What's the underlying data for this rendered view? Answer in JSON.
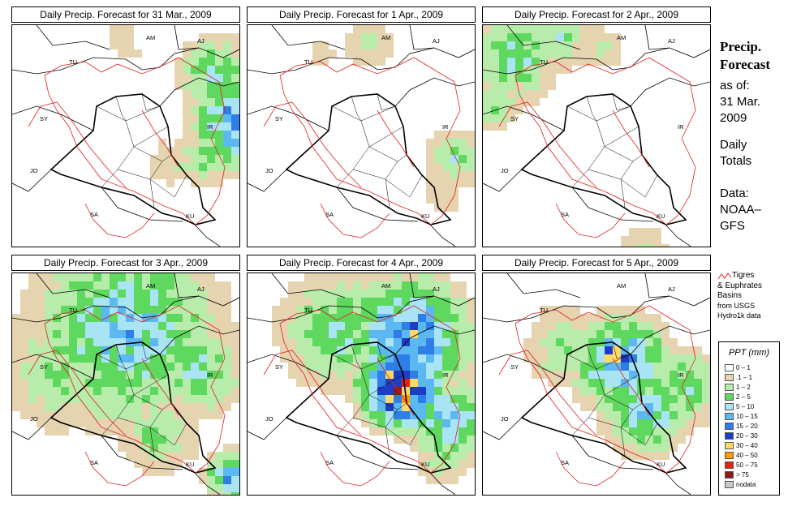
{
  "panels": [
    {
      "title": "Daily Precip. Forecast for  31 Mar., 2009"
    },
    {
      "title": "Daily Precip. Forecast for  1 Apr., 2009"
    },
    {
      "title": "Daily Precip. Forecast for  2 Apr., 2009"
    },
    {
      "title": "Daily Precip. Forecast for  3 Apr., 2009"
    },
    {
      "title": "Daily Precip. Forecast for  4 Apr., 2009"
    },
    {
      "title": "Daily Precip. Forecast for  5 Apr., 2009"
    }
  ],
  "map_labels": [
    "AM",
    "AJ",
    "TU",
    "SY",
    "IR",
    "JO",
    "SA",
    "KU"
  ],
  "sidebar": {
    "heading_1": "Precip.",
    "heading_2": "Forecast",
    "asof_1": "as of:",
    "asof_2": "31 Mar.",
    "asof_3": "2009",
    "daily_1": "Daily",
    "daily_2": "Totals",
    "data_1": "Data:",
    "data_2": "NOAA–",
    "data_3": "GFS"
  },
  "basin_legend": {
    "line_1": "Tigres",
    "line_2": "& Euphrates",
    "line_3": "Basins",
    "source_1": "from USGS",
    "source_2": "Hydro1k data",
    "color": "#e02020"
  },
  "ppt_legend": {
    "title": "PPT (mm)",
    "classes": [
      {
        "label": "0 – 1",
        "color": "#ffffff"
      },
      {
        "label": ".1 – 1",
        "color": "#e6d3b0"
      },
      {
        "label": "1 – 2",
        "color": "#b8ecaa"
      },
      {
        "label": "2 – 5",
        "color": "#5ed85e"
      },
      {
        "label": "5 – 10",
        "color": "#a9e4f5"
      },
      {
        "label": "10 – 15",
        "color": "#5cb8f0"
      },
      {
        "label": "15 – 20",
        "color": "#2f7de6"
      },
      {
        "label": "20 – 30",
        "color": "#1d3ec4"
      },
      {
        "label": "30 – 40",
        "color": "#ffd966"
      },
      {
        "label": "40 – 50",
        "color": "#ff9a00"
      },
      {
        "label": "50 – 75",
        "color": "#e8200e"
      },
      {
        "label": "> 75",
        "color": "#8b1a1a"
      },
      {
        "label": "nodata",
        "color": "#c8c8c8"
      }
    ]
  }
}
